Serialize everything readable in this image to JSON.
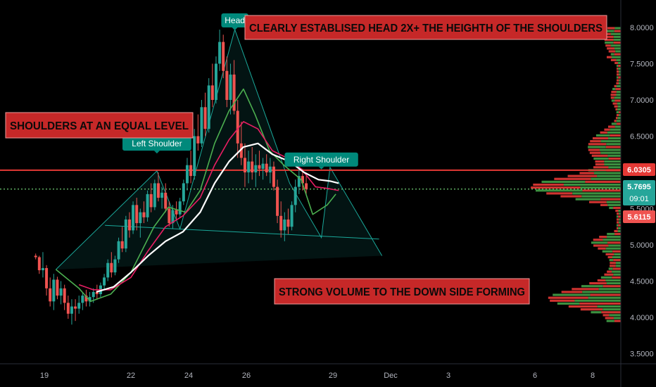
{
  "colors": {
    "background": "#000000",
    "up": "#26a69a",
    "down": "#ef5350",
    "ema_green": "#4caf50",
    "ema_red": "#e91e63",
    "ema_white": "#ffffff",
    "pattern": "#1aa89a",
    "resistance": "#e53935",
    "annotation_bg": "#c62828",
    "label_bg": "#00897b"
  },
  "chart_data": {
    "type": "candlestick",
    "title": "",
    "y_axis": {
      "ticks": [
        "8.0000",
        "7.5000",
        "7.0000",
        "6.5000",
        "6.0000",
        "5.5000",
        "5.0000",
        "4.5000",
        "4.0000",
        "3.5000"
      ],
      "ylim": [
        3.45,
        8.3
      ]
    },
    "x_axis": {
      "ticks": [
        {
          "label": "19",
          "day": 19
        },
        {
          "label": "22",
          "day": 22
        },
        {
          "label": "24",
          "day": 24
        },
        {
          "label": "26",
          "day": 26
        },
        {
          "label": "29",
          "day": 29
        },
        {
          "label": "Dec",
          "day": 31
        },
        {
          "label": "3",
          "day": 33
        },
        {
          "label": "6",
          "day": 36
        },
        {
          "label": "8",
          "day": 38
        }
      ]
    },
    "price_badges": [
      {
        "value": "6.0305",
        "color": "#e53935"
      },
      {
        "value": "5.7695",
        "sub": "09:01",
        "color": "#26a69a"
      },
      {
        "value": "5.6115",
        "color": "#ef5350"
      }
    ],
    "resistance_level": 6.03,
    "current_price": 5.77,
    "annotations": [
      {
        "text": "CLEARLY ESTABLISED HEAD 2X+ THE HEIGHTH OF THE SHOULDERS"
      },
      {
        "text": "SHOULDERS AT AN EQUAL  LEVEL"
      },
      {
        "text": "STRONG VOLUME TO THE DOWN SIDE FORMING"
      }
    ],
    "pattern_labels": [
      {
        "text": "Head",
        "day": 25.6,
        "price": 8.0
      },
      {
        "text": "Left Shoulder",
        "day": 22.9,
        "price": 6.3
      },
      {
        "text": "Right Shoulder",
        "day": 28.6,
        "price": 6.08
      }
    ],
    "head_and_shoulders_points": [
      {
        "day": 19.4,
        "price": 4.66
      },
      {
        "day": 22.9,
        "price": 6.02
      },
      {
        "day": 23.7,
        "price": 5.22
      },
      {
        "day": 25.6,
        "price": 7.97
      },
      {
        "day": 27.5,
        "price": 5.85
      },
      {
        "day": 28.6,
        "price": 5.1
      },
      {
        "day": 28.9,
        "price": 6.07
      },
      {
        "day": 30.7,
        "price": 4.85
      }
    ],
    "neckline": [
      {
        "day": 21.1,
        "price": 5.27
      },
      {
        "day": 30.6,
        "price": 5.08
      }
    ],
    "ohlc_start_day": 18.7,
    "ohlc_step_days": 0.125,
    "ohlc": [
      [
        4.85,
        4.88,
        4.8,
        4.83
      ],
      [
        4.83,
        4.85,
        4.6,
        4.65
      ],
      [
        4.65,
        4.9,
        4.55,
        4.68
      ],
      [
        4.68,
        4.72,
        4.3,
        4.4
      ],
      [
        4.4,
        4.55,
        4.15,
        4.22
      ],
      [
        4.22,
        4.6,
        4.1,
        4.52
      ],
      [
        4.52,
        4.56,
        4.25,
        4.3
      ],
      [
        4.3,
        4.5,
        4.18,
        4.4
      ],
      [
        4.4,
        4.45,
        4.1,
        4.2
      ],
      [
        4.2,
        4.3,
        3.98,
        4.05
      ],
      [
        4.05,
        4.25,
        3.9,
        4.15
      ],
      [
        4.15,
        4.25,
        3.95,
        4.12
      ],
      [
        4.12,
        4.3,
        4.05,
        4.2
      ],
      [
        4.2,
        4.35,
        4.1,
        4.3
      ],
      [
        4.3,
        4.38,
        4.15,
        4.22
      ],
      [
        4.22,
        4.35,
        4.15,
        4.28
      ],
      [
        4.28,
        4.4,
        4.2,
        4.35
      ],
      [
        4.35,
        4.45,
        4.25,
        4.32
      ],
      [
        4.32,
        4.48,
        4.28,
        4.44
      ],
      [
        4.44,
        4.6,
        4.38,
        4.55
      ],
      [
        4.55,
        4.8,
        4.5,
        4.75
      ],
      [
        4.75,
        4.9,
        4.55,
        4.62
      ],
      [
        4.62,
        4.85,
        4.58,
        4.8
      ],
      [
        4.8,
        5.1,
        4.75,
        5.05
      ],
      [
        5.05,
        5.25,
        4.9,
        4.95
      ],
      [
        4.95,
        5.4,
        4.9,
        5.35
      ],
      [
        5.35,
        5.45,
        5.1,
        5.2
      ],
      [
        5.2,
        5.6,
        5.15,
        5.55
      ],
      [
        5.55,
        5.65,
        5.2,
        5.3
      ],
      [
        5.3,
        5.5,
        5.1,
        5.45
      ],
      [
        5.45,
        5.6,
        5.3,
        5.38
      ],
      [
        5.38,
        5.75,
        5.32,
        5.7
      ],
      [
        5.7,
        5.85,
        5.45,
        5.52
      ],
      [
        5.52,
        5.9,
        5.48,
        5.85
      ],
      [
        5.85,
        6.0,
        5.6,
        5.65
      ],
      [
        5.65,
        5.8,
        5.5,
        5.72
      ],
      [
        5.72,
        5.85,
        5.45,
        5.5
      ],
      [
        5.5,
        5.6,
        5.25,
        5.3
      ],
      [
        5.3,
        5.55,
        5.22,
        5.48
      ],
      [
        5.48,
        5.6,
        5.35,
        5.42
      ],
      [
        5.42,
        5.65,
        5.38,
        5.6
      ],
      [
        5.6,
        5.9,
        5.55,
        5.85
      ],
      [
        5.85,
        6.2,
        5.75,
        6.1
      ],
      [
        6.1,
        6.3,
        5.85,
        5.95
      ],
      [
        5.95,
        6.6,
        5.9,
        6.5
      ],
      [
        6.5,
        6.8,
        6.3,
        6.4
      ],
      [
        6.4,
        7.0,
        6.35,
        6.9
      ],
      [
        6.9,
        7.1,
        6.5,
        6.6
      ],
      [
        6.6,
        7.3,
        6.55,
        7.2
      ],
      [
        7.2,
        7.5,
        6.9,
        7.0
      ],
      [
        7.0,
        7.6,
        6.95,
        7.5
      ],
      [
        7.5,
        7.97,
        7.4,
        7.8
      ],
      [
        7.8,
        7.9,
        7.3,
        7.4
      ],
      [
        7.4,
        7.6,
        6.9,
        7.0
      ],
      [
        7.0,
        7.5,
        6.8,
        7.35
      ],
      [
        7.35,
        7.55,
        6.8,
        6.85
      ],
      [
        6.85,
        7.0,
        6.2,
        6.4
      ],
      [
        6.4,
        6.7,
        6.1,
        6.2
      ],
      [
        6.2,
        6.4,
        5.8,
        6.0
      ],
      [
        6.0,
        6.3,
        5.85,
        6.15
      ],
      [
        6.15,
        6.35,
        5.9,
        6.0
      ],
      [
        6.0,
        6.25,
        5.8,
        6.1
      ],
      [
        6.1,
        6.3,
        5.95,
        6.05
      ],
      [
        6.05,
        6.2,
        5.9,
        6.12
      ],
      [
        6.12,
        6.25,
        5.95,
        6.0
      ],
      [
        6.0,
        6.2,
        5.85,
        6.08
      ],
      [
        6.08,
        6.15,
        5.75,
        5.8
      ],
      [
        5.8,
        5.9,
        5.3,
        5.4
      ],
      [
        5.4,
        5.6,
        5.1,
        5.2
      ],
      [
        5.2,
        5.45,
        5.05,
        5.35
      ],
      [
        5.35,
        5.5,
        5.15,
        5.25
      ],
      [
        5.25,
        5.6,
        5.2,
        5.55
      ],
      [
        5.55,
        5.9,
        5.45,
        5.8
      ],
      [
        5.8,
        6.07,
        5.7,
        5.95
      ],
      [
        5.95,
        6.05,
        5.75,
        5.85
      ],
      [
        5.85,
        5.95,
        5.7,
        5.77
      ]
    ],
    "moving_averages": [
      {
        "color": "#4caf50",
        "values": [
          [
            19.4,
            4.66
          ],
          [
            20.2,
            4.4
          ],
          [
            20.6,
            4.22
          ],
          [
            21.3,
            4.32
          ],
          [
            22.0,
            4.62
          ],
          [
            22.8,
            5.25
          ],
          [
            23.3,
            5.52
          ],
          [
            23.9,
            5.45
          ],
          [
            24.4,
            5.75
          ],
          [
            24.9,
            6.4
          ],
          [
            25.4,
            6.85
          ],
          [
            25.9,
            7.15
          ],
          [
            26.3,
            6.8
          ],
          [
            26.8,
            6.3
          ],
          [
            27.3,
            6.1
          ],
          [
            27.9,
            5.9
          ],
          [
            28.3,
            5.42
          ],
          [
            28.8,
            5.55
          ],
          [
            29.1,
            5.7
          ]
        ]
      },
      {
        "color": "#e91e63",
        "values": [
          [
            20.2,
            4.45
          ],
          [
            20.7,
            4.38
          ],
          [
            21.3,
            4.38
          ],
          [
            22.0,
            4.55
          ],
          [
            22.6,
            4.92
          ],
          [
            23.2,
            5.25
          ],
          [
            23.8,
            5.4
          ],
          [
            24.4,
            5.65
          ],
          [
            24.9,
            6.1
          ],
          [
            25.4,
            6.45
          ],
          [
            25.9,
            6.7
          ],
          [
            26.4,
            6.6
          ],
          [
            26.9,
            6.3
          ],
          [
            27.4,
            6.2
          ],
          [
            27.9,
            6.05
          ],
          [
            28.4,
            5.8
          ],
          [
            28.8,
            5.78
          ],
          [
            29.2,
            5.75
          ]
        ]
      },
      {
        "color": "#ffffff",
        "values": [
          [
            20.8,
            4.35
          ],
          [
            21.4,
            4.42
          ],
          [
            22.0,
            4.62
          ],
          [
            22.6,
            4.85
          ],
          [
            23.2,
            5.05
          ],
          [
            23.8,
            5.18
          ],
          [
            24.4,
            5.45
          ],
          [
            24.9,
            5.85
          ],
          [
            25.4,
            6.15
          ],
          [
            25.9,
            6.35
          ],
          [
            26.4,
            6.4
          ],
          [
            26.9,
            6.25
          ],
          [
            27.5,
            6.15
          ],
          [
            28.0,
            6.0
          ],
          [
            28.5,
            5.9
          ],
          [
            28.9,
            5.88
          ],
          [
            29.2,
            5.85
          ]
        ]
      }
    ]
  }
}
